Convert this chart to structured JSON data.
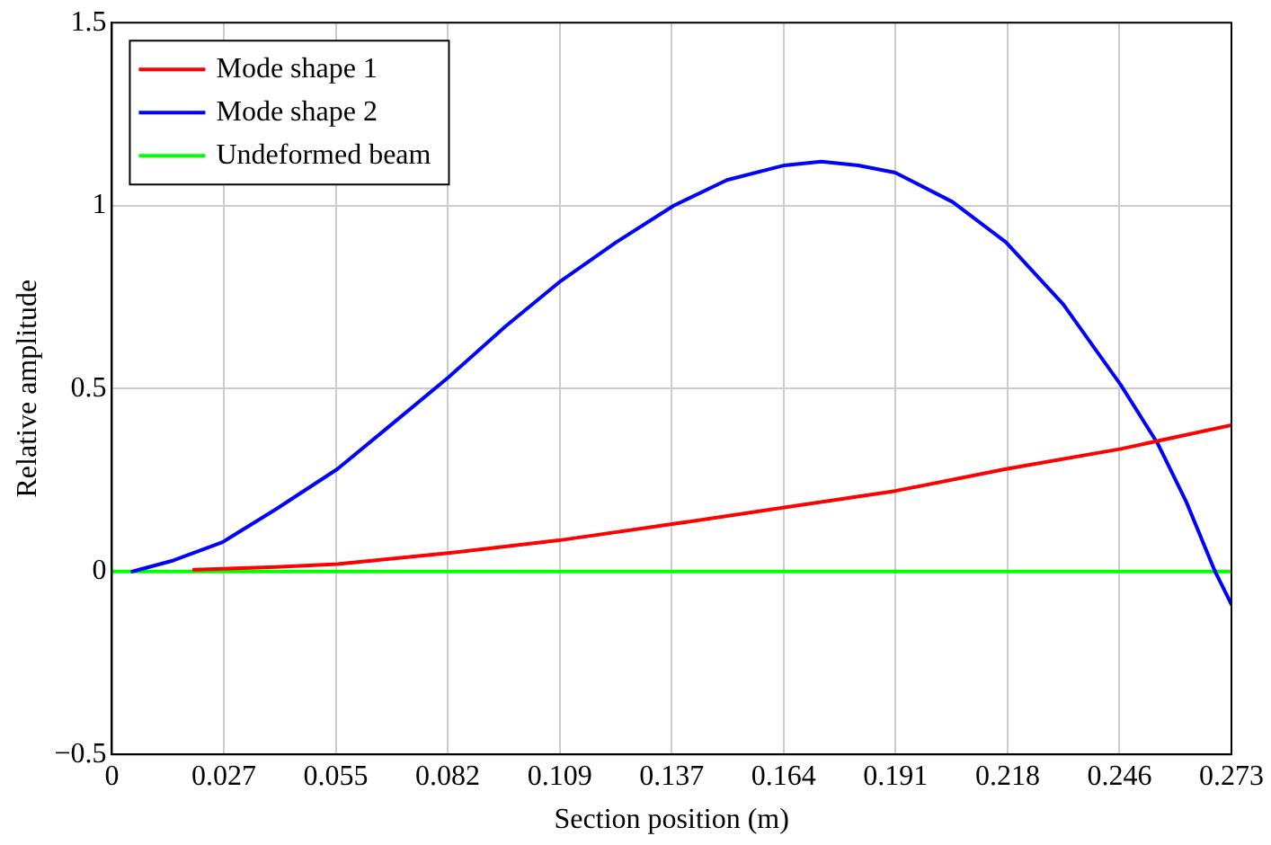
{
  "chart_data": {
    "type": "line",
    "xlabel": "Section position (m)",
    "ylabel": "Relative amplitude",
    "xlim": [
      0,
      0.273
    ],
    "xticks": [
      0,
      {
        "value": 0.0273,
        "label": "0.027"
      },
      {
        "value": 0.0546,
        "label": "0.055"
      },
      {
        "value": 0.0819,
        "label": "0.082"
      },
      {
        "value": 0.1092,
        "label": "0.109"
      },
      {
        "value": 0.1365,
        "label": "0.137"
      },
      {
        "value": 0.1638,
        "label": "0.164"
      },
      {
        "value": 0.1911,
        "label": "0.191"
      },
      {
        "value": 0.2184,
        "label": "0.218"
      },
      {
        "value": 0.2457,
        "label": "0.246"
      },
      0.273
    ],
    "ylim": [
      -0.5,
      1.5
    ],
    "yticks": [
      {
        "value": -0.5,
        "label": "−0.5"
      },
      0,
      0.5,
      1,
      1.5
    ],
    "grid": true,
    "legend": "top left",
    "marker": "none",
    "line_style": "solid",
    "series": [
      {
        "name": "Mode shape 1",
        "color": "#ff0000",
        "x": [
          0.02,
          0.04,
          0.055,
          0.082,
          0.109,
          0.137,
          0.164,
          0.191,
          0.218,
          0.246,
          0.273
        ],
        "values": [
          0.005,
          0.012,
          0.02,
          0.05,
          0.085,
          0.13,
          0.175,
          0.22,
          0.28,
          0.335,
          0.4
        ]
      },
      {
        "name": "Mode shape 2",
        "color": "#0000ff",
        "x": [
          0.005,
          0.015,
          0.027,
          0.04,
          0.055,
          0.068,
          0.082,
          0.096,
          0.109,
          0.123,
          0.137,
          0.15,
          0.164,
          0.173,
          0.182,
          0.191,
          0.205,
          0.218,
          0.232,
          0.246,
          0.255,
          0.262,
          0.269,
          0.273
        ],
        "values": [
          0,
          0.03,
          0.08,
          0.17,
          0.28,
          0.4,
          0.53,
          0.67,
          0.79,
          0.9,
          1.0,
          1.07,
          1.11,
          1.12,
          1.11,
          1.09,
          1.01,
          0.9,
          0.73,
          0.51,
          0.35,
          0.19,
          0.0,
          -0.09
        ]
      },
      {
        "name": "Undeformed beam",
        "color": "#00ff00",
        "x": [
          0,
          0.273
        ],
        "values": [
          0,
          0
        ]
      }
    ]
  }
}
